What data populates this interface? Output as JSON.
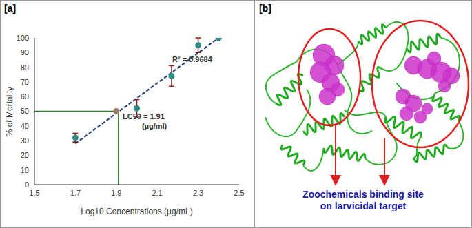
{
  "chart_data": {
    "type": "scatter",
    "title": "[a]",
    "x_label": "Log10 Concentrations (µg/mL)",
    "y_label": "% of Mortality",
    "x": [
      1.7,
      1.9,
      2.0,
      2.17,
      2.3,
      2.4
    ],
    "values": [
      32,
      50,
      52,
      74,
      95,
      100
    ],
    "errors": [
      3,
      0,
      6,
      7,
      5,
      0
    ],
    "colors": [
      "#2e8b84",
      "#9c7b6b",
      "#2e8b84",
      "#2e8b84",
      "#2e8b84",
      "#2e8b84"
    ],
    "error_color": "#8b1a1a",
    "marker": "circle",
    "xlim": [
      1.5,
      2.5
    ],
    "xticks": [
      1.5,
      1.7,
      1.9,
      2.1,
      2.3,
      2.5
    ],
    "ylim": [
      0,
      100
    ],
    "yticks": [
      0,
      10,
      20,
      30,
      40,
      50,
      60,
      70,
      80,
      90,
      100
    ],
    "grid": false,
    "trendline": {
      "x": [
        1.7,
        2.4
      ],
      "values": [
        28,
        100
      ],
      "color": "#1f3a7a",
      "line_style": "dashed"
    },
    "lc50": {
      "x": 1.91,
      "y": 50,
      "color": "#2e7d32"
    },
    "annotations": [
      "R² = 0.9684",
      "LC50 = 1.91",
      "(µg/ml)"
    ]
  },
  "panel_b": {
    "label": "[b]",
    "caption": [
      "Zoochemicals binding site",
      "on larvicidal target"
    ]
  }
}
